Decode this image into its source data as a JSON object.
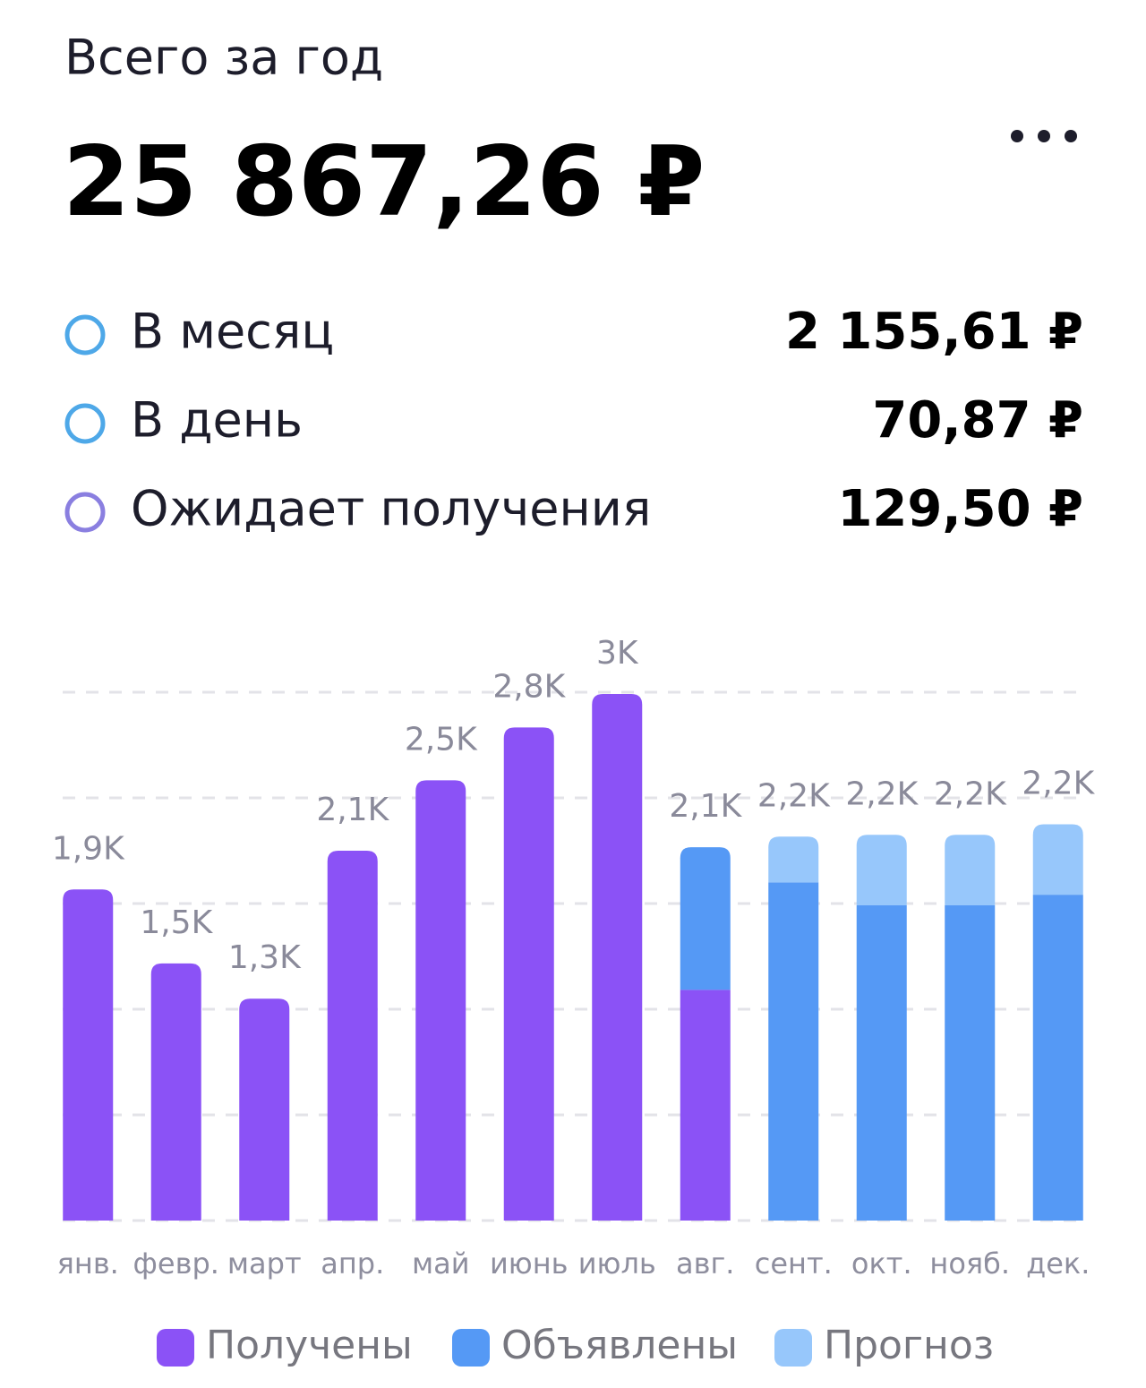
{
  "header": {
    "title": "Всего за год",
    "total": "25 867,26 ₽"
  },
  "summary": [
    {
      "label": "В месяц",
      "value": "2 155,61 ₽",
      "color": "#4ea8e8"
    },
    {
      "label": "В день",
      "value": "70,87 ₽",
      "color": "#4ea8e8"
    },
    {
      "label": "Ожидает получения",
      "value": "129,50 ₽",
      "color": "#8a7fe0"
    }
  ],
  "chart_data": {
    "type": "stacked_bar",
    "categories": [
      "янв.",
      "февр.",
      "март",
      "апр.",
      "май",
      "июнь",
      "июль",
      "авг.",
      "сент.",
      "окт.",
      "нояб.",
      "дек."
    ],
    "series": [
      {
        "name": "Получены",
        "color": "#8b52f6",
        "values": [
          1880,
          1460,
          1260,
          2100,
          2500,
          2800,
          2990,
          1310,
          null,
          null,
          null,
          null
        ]
      },
      {
        "name": "Объявлены",
        "color": "#5599f5",
        "values": [
          null,
          null,
          null,
          null,
          null,
          null,
          null,
          810,
          1920,
          1790,
          1790,
          1850
        ]
      },
      {
        "name": "Прогноз",
        "color": "#97c7fb",
        "values": [
          null,
          null,
          null,
          null,
          null,
          null,
          null,
          null,
          260,
          400,
          400,
          400
        ]
      }
    ],
    "total_labels": [
      "1,9K",
      "1,5K",
      "1,3K",
      "2,1K",
      "2,5K",
      "2,8K",
      "3K",
      "2,1K",
      "2,2K",
      "2,2K",
      "2,2K",
      "2,2K"
    ],
    "ylim": [
      0,
      3000
    ],
    "yticks": [
      0,
      600,
      1200,
      1800,
      2400,
      3000
    ],
    "grid": true
  }
}
